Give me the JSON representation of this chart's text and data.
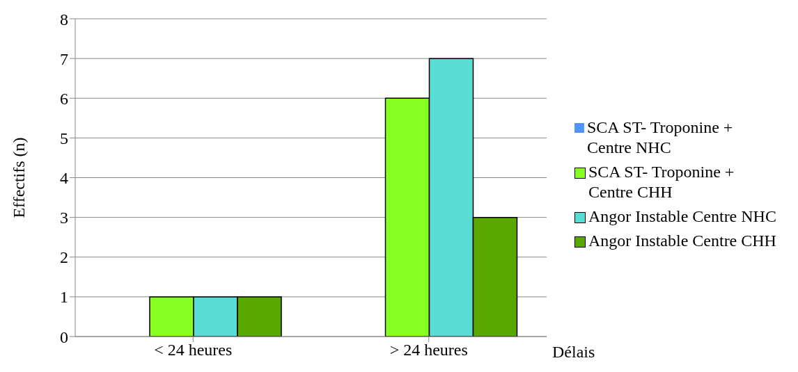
{
  "chart_data": {
    "type": "bar",
    "xlabel": "Délais",
    "ylabel": "Effectifs (n)",
    "categories": [
      "< 24 heures",
      "> 24 heures"
    ],
    "series": [
      {
        "name": "SCA ST- Troponine + Centre NHC",
        "color": "#4f94ff",
        "values": [
          0,
          0
        ]
      },
      {
        "name": "SCA ST- Troponine + Centre CHH",
        "color": "#88ff22",
        "values": [
          1,
          6
        ]
      },
      {
        "name": "Angor Instable Centre NHC",
        "color": "#58dcd4",
        "values": [
          1,
          7
        ]
      },
      {
        "name": "Angor Instable Centre CHH",
        "color": "#58a800",
        "values": [
          1,
          3
        ]
      }
    ],
    "ylim": [
      0,
      8
    ],
    "yticks": [
      0,
      1,
      2,
      3,
      4,
      5,
      6,
      7,
      8
    ],
    "grid": "y",
    "legend": "right"
  }
}
